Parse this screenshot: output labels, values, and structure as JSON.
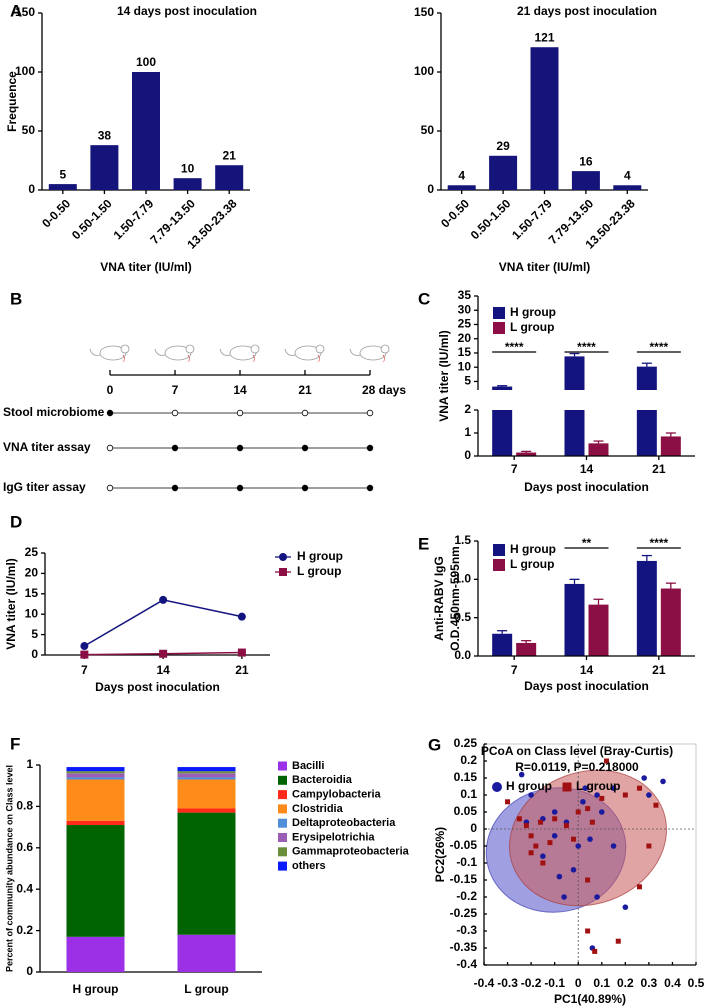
{
  "panel_labels": [
    "A",
    "B",
    "C",
    "D",
    "E",
    "F",
    "G"
  ],
  "timeline": {
    "days": [
      0,
      7,
      14,
      21,
      {
        "value": 28,
        "label": "28 days"
      }
    ],
    "rows": [
      {
        "name": "Stool microbiome",
        "sampled": [
          true,
          false,
          false,
          false,
          false
        ]
      },
      {
        "name": "VNA titer assay",
        "sampled": [
          false,
          true,
          true,
          true,
          true
        ]
      },
      {
        "name": "IgG titer assay",
        "sampled": [
          false,
          true,
          true,
          true,
          true
        ]
      }
    ]
  },
  "chart_data": [
    {
      "type": "bar",
      "title": "14 days post inoculation",
      "categories": [
        "0-0.50",
        "0.50-1.50",
        "1.50-7.79",
        "7.79-13.50",
        "13.50-23.38"
      ],
      "values": [
        5,
        38,
        100,
        10,
        21
      ],
      "color": "#14147a",
      "show_values": true,
      "ylim": [
        0,
        150
      ],
      "yticks": [
        0,
        50,
        100,
        150
      ],
      "x_label": "VNA titer (IU/ml)",
      "y_label": "Frequence"
    },
    {
      "type": "bar",
      "title": "21 days post inoculation",
      "categories": [
        "0-0.50",
        "0.50-1.50",
        "1.50-7.79",
        "7.79-13.50",
        "13.50-23.38"
      ],
      "values": [
        4,
        29,
        121,
        16,
        4
      ],
      "color": "#14147a",
      "show_values": true,
      "ylim": [
        0,
        150
      ],
      "yticks": [
        0,
        50,
        100,
        150
      ],
      "x_label": "VNA titer (IU/ml)"
    },
    {
      "type": "grouped_bar",
      "categories": [
        "7",
        "14",
        "21"
      ],
      "series": [
        {
          "name": "H group",
          "color": "#141480",
          "values": [
            3.2,
            13.8,
            10.2
          ],
          "errors": [
            0.3,
            1.0,
            1.2
          ]
        },
        {
          "name": "L group",
          "color": "#8b0f45",
          "values": [
            0.15,
            0.55,
            0.85
          ],
          "errors": [
            0.05,
            0.1,
            0.15
          ]
        }
      ],
      "ylim": [
        0,
        35
      ],
      "ybreak": 2,
      "yticks": [
        0,
        1,
        2,
        5,
        10,
        15,
        20,
        25,
        30,
        35
      ],
      "significance": [
        "****",
        "****",
        "****"
      ],
      "x_label": "Days post inoculation",
      "y_label": "VNA titer (IU/ml)",
      "legend": "top-left"
    },
    {
      "type": "line",
      "x": [
        7,
        14,
        21
      ],
      "xlim": [
        3.5,
        23.5
      ],
      "xticks": [
        7,
        14,
        21
      ],
      "series": [
        {
          "name": "H group",
          "color": "#141480",
          "marker": "circle",
          "values": [
            2.2,
            13.5,
            9.4
          ]
        },
        {
          "name": "L group",
          "color": "#8b0f45",
          "marker": "square",
          "values": [
            0.1,
            0.3,
            0.6
          ]
        }
      ],
      "ylim": [
        0,
        25
      ],
      "yticks": [
        0,
        5,
        10,
        15,
        20,
        25
      ],
      "x_label": "Days post inoculation",
      "y_label": "VNA titer (IU/ml)",
      "legend": "top-right"
    },
    {
      "type": "grouped_bar",
      "categories": [
        "7",
        "14",
        "21"
      ],
      "series": [
        {
          "name": "H group",
          "color": "#141480",
          "values": [
            0.29,
            0.94,
            1.24
          ],
          "errors": [
            0.04,
            0.06,
            0.07
          ]
        },
        {
          "name": "L group",
          "color": "#8b0f45",
          "values": [
            0.17,
            0.67,
            0.88
          ],
          "errors": [
            0.03,
            0.07,
            0.07
          ]
        }
      ],
      "ylim": [
        0,
        1.5
      ],
      "yticks": [
        {
          "value": 0,
          "label": "0.0"
        },
        0.5,
        {
          "value": 1,
          "label": "1.0"
        },
        1.5
      ],
      "significance": [
        null,
        "**",
        "****"
      ],
      "x_label": "Days post inoculation",
      "y_label": [
        "Anti-RABV IgG",
        "O.D.450nm-595nm"
      ],
      "legend": "top-left"
    },
    {
      "type": "stacked_bar",
      "categories": [
        "H group",
        "L group"
      ],
      "series": [
        {
          "name": "Bacilli",
          "color": "#9b30e6",
          "values": [
            0.17,
            0.18
          ]
        },
        {
          "name": "Bacteroidia",
          "color": "#006400",
          "values": [
            0.54,
            0.59
          ]
        },
        {
          "name": "Campylobacteria",
          "color": "#ff2a1a",
          "values": [
            0.02,
            0.02
          ]
        },
        {
          "name": "Clostridia",
          "color": "#ff8c1a",
          "values": [
            0.2,
            0.14
          ]
        },
        {
          "name": "Deltaproteobacteria",
          "color": "#4f8fd9",
          "values": [
            0.01,
            0.01
          ]
        },
        {
          "name": "Erysipelotrichia",
          "color": "#9a5fb5",
          "values": [
            0.02,
            0.02
          ]
        },
        {
          "name": "Gammaproteobacteria",
          "color": "#6b8e3a",
          "values": [
            0.01,
            0.01
          ]
        },
        {
          "name": "others",
          "color": "#0a1aff",
          "values": [
            0.02,
            0.02
          ]
        }
      ],
      "ylim": [
        0,
        1
      ],
      "yticks": [
        0,
        0.2,
        0.4,
        0.6,
        0.8,
        1
      ],
      "y_label": "Percent of community abundance on Class level",
      "legend": "right"
    },
    {
      "type": "scatter",
      "title": "PCoA on Class level (Bray-Curtis)",
      "subtitle": "R=0.0119, P=0.218000",
      "series": [
        {
          "name": "H group",
          "color": "#1a1a9e",
          "marker": "circle",
          "x": [
            -0.24,
            -0.2,
            -0.22,
            -0.15,
            -0.1,
            0.02,
            0.03,
            0.08,
            0.15,
            0.28,
            0.36,
            0.3,
            0.1,
            0.05,
            0.0,
            -0.02,
            -0.08,
            -0.06,
            0.08,
            0.2,
            0.06,
            -0.15,
            -0.1,
            0.15,
            -0.05
          ],
          "values": [
            0.16,
            0.1,
            0.02,
            0.03,
            0.05,
            0.08,
            0.12,
            0.1,
            0.12,
            0.15,
            0.14,
            0.1,
            0.05,
            -0.03,
            -0.05,
            -0.12,
            -0.14,
            -0.2,
            -0.2,
            -0.23,
            -0.35,
            -0.08,
            -0.02,
            -0.05,
            0.02
          ]
        },
        {
          "name": "L group",
          "color": "#a01010",
          "marker": "square",
          "x": [
            -0.3,
            -0.25,
            -0.22,
            -0.2,
            -0.18,
            -0.15,
            -0.2,
            -0.12,
            -0.05,
            0.0,
            0.04,
            0.06,
            0.1,
            0.12,
            0.2,
            0.26,
            0.33,
            0.3,
            0.26,
            0.04,
            0.04,
            0.07,
            0.17,
            -0.02,
            -0.1,
            -0.16
          ],
          "values": [
            0.08,
            0.03,
            0.01,
            -0.02,
            -0.05,
            -0.1,
            -0.07,
            -0.04,
            0.01,
            0.05,
            0.06,
            0.02,
            0.09,
            0.2,
            0.1,
            0.12,
            0.07,
            -0.05,
            -0.17,
            -0.15,
            -0.3,
            -0.36,
            -0.33,
            -0.03,
            0.03,
            0.02
          ]
        }
      ],
      "xlim": [
        -0.4,
        0.5
      ],
      "xticks": [
        -0.4,
        -0.3,
        -0.2,
        -0.1,
        0,
        0.1,
        0.2,
        0.3,
        0.4,
        0.5
      ],
      "ylim": [
        -0.4,
        0.25
      ],
      "yticks": [
        0.25,
        0.2,
        0.15,
        0.1,
        0.05,
        0,
        -0.05,
        -0.1,
        -0.15,
        -0.2,
        -0.25,
        -0.3,
        -0.35,
        -0.4
      ],
      "x_label": "PC1(40.89%)",
      "y_label": "PC2(26%)",
      "legend": "top"
    }
  ]
}
